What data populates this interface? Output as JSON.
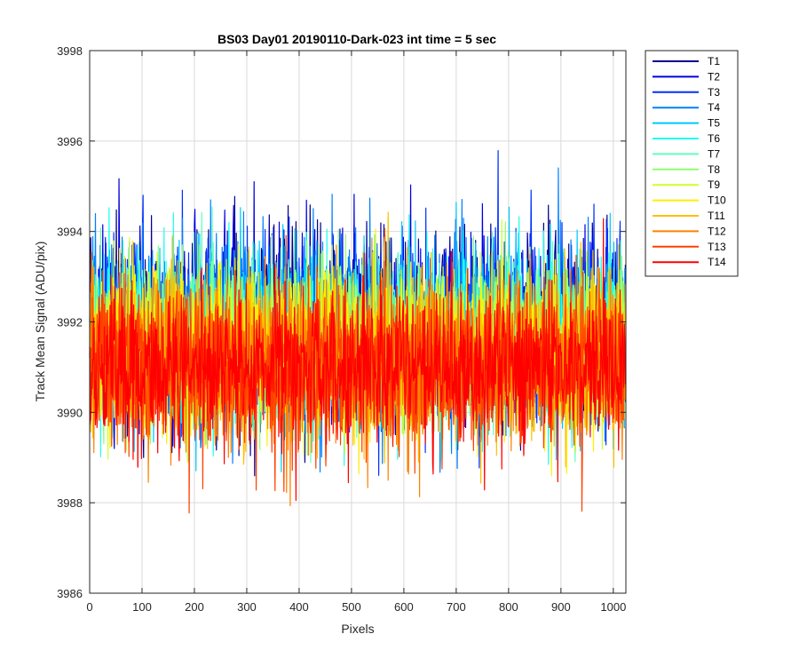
{
  "chart_data": {
    "type": "line",
    "title": "BS03 Day01 20190110-Dark-023 int time = 5 sec",
    "xlabel": "Pixels",
    "ylabel": "Track Mean Signal (ADU/pix)",
    "xlim": [
      0,
      1024
    ],
    "ylim": [
      3986,
      3998
    ],
    "xticks": [
      "0",
      "100",
      "200",
      "300",
      "400",
      "500",
      "600",
      "700",
      "800",
      "900",
      "1000"
    ],
    "yticks": [
      "3986",
      "3988",
      "3990",
      "3992",
      "3994",
      "3996",
      "3998"
    ],
    "grid": true,
    "legend_position": "outside-right",
    "n_points": 1024,
    "series": [
      {
        "name": "T1",
        "color": "#00008F",
        "mean": 3991.9,
        "amp": 1.05,
        "min": 3986.8,
        "max": 3996.0
      },
      {
        "name": "T2",
        "color": "#0000DF",
        "mean": 3991.9,
        "amp": 1.05,
        "min": 3987.7,
        "max": 3996.4
      },
      {
        "name": "T3",
        "color": "#0030FF",
        "mean": 3991.85,
        "amp": 1.0,
        "min": 3988.2,
        "max": 3996.2
      },
      {
        "name": "T4",
        "color": "#0080FF",
        "mean": 3991.8,
        "amp": 1.0,
        "min": 3988.5,
        "max": 3995.5
      },
      {
        "name": "T5",
        "color": "#00C8FF",
        "mean": 3991.7,
        "amp": 0.95,
        "min": 3988.6,
        "max": 3995.9
      },
      {
        "name": "T6",
        "color": "#20FFEF",
        "mean": 3991.65,
        "amp": 0.95,
        "min": 3988.8,
        "max": 3995.0
      },
      {
        "name": "T7",
        "color": "#60FFBF",
        "mean": 3991.55,
        "amp": 0.9,
        "min": 3988.9,
        "max": 3995.0
      },
      {
        "name": "T8",
        "color": "#8FFF70",
        "mean": 3991.5,
        "amp": 0.9,
        "min": 3986.9,
        "max": 3995.1
      },
      {
        "name": "T9",
        "color": "#CFFF30",
        "mean": 3991.4,
        "amp": 0.9,
        "min": 3988.2,
        "max": 3994.9
      },
      {
        "name": "T10",
        "color": "#FFEF00",
        "mean": 3991.3,
        "amp": 0.9,
        "min": 3987.5,
        "max": 3994.7
      },
      {
        "name": "T11",
        "color": "#FFBF00",
        "mean": 3991.2,
        "amp": 0.9,
        "min": 3987.7,
        "max": 3994.7
      },
      {
        "name": "T12",
        "color": "#FF8000",
        "mean": 3991.1,
        "amp": 0.9,
        "min": 3987.6,
        "max": 3994.7
      },
      {
        "name": "T13",
        "color": "#FF4000",
        "mean": 3991.0,
        "amp": 0.9,
        "min": 3987.6,
        "max": 3995.1
      },
      {
        "name": "T14",
        "color": "#FF0000",
        "mean": 3991.0,
        "amp": 0.85,
        "min": 3987.9,
        "max": 3995.0
      }
    ]
  }
}
